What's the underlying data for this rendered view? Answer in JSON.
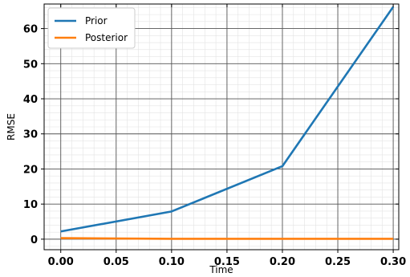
{
  "chart_data": {
    "type": "line",
    "xlabel": "Time",
    "ylabel": "RMSE",
    "xlim": [
      -0.015,
      0.305
    ],
    "ylim": [
      -3,
      67
    ],
    "xticks": [
      0.0,
      0.05,
      0.1,
      0.15,
      0.2,
      0.25,
      0.3
    ],
    "xtick_labels": [
      "0.00",
      "0.05",
      "0.10",
      "0.15",
      "0.20",
      "0.25",
      "0.30"
    ],
    "yticks": [
      0,
      10,
      20,
      30,
      40,
      50,
      60
    ],
    "ytick_labels": [
      "0",
      "10",
      "20",
      "30",
      "40",
      "50",
      "60"
    ],
    "grid": true,
    "minor_grid": true,
    "legend_position": "top-left",
    "series": [
      {
        "name": "Prior",
        "color": "#1f77b4",
        "x": [
          0.0,
          0.1,
          0.2,
          0.3
        ],
        "y": [
          2.2,
          7.9,
          20.8,
          66.2
        ]
      },
      {
        "name": "Posterior",
        "color": "#ff7f0e",
        "x": [
          0.0,
          0.1,
          0.2,
          0.3
        ],
        "y": [
          0.3,
          0.1,
          0.1,
          0.1
        ]
      }
    ]
  }
}
